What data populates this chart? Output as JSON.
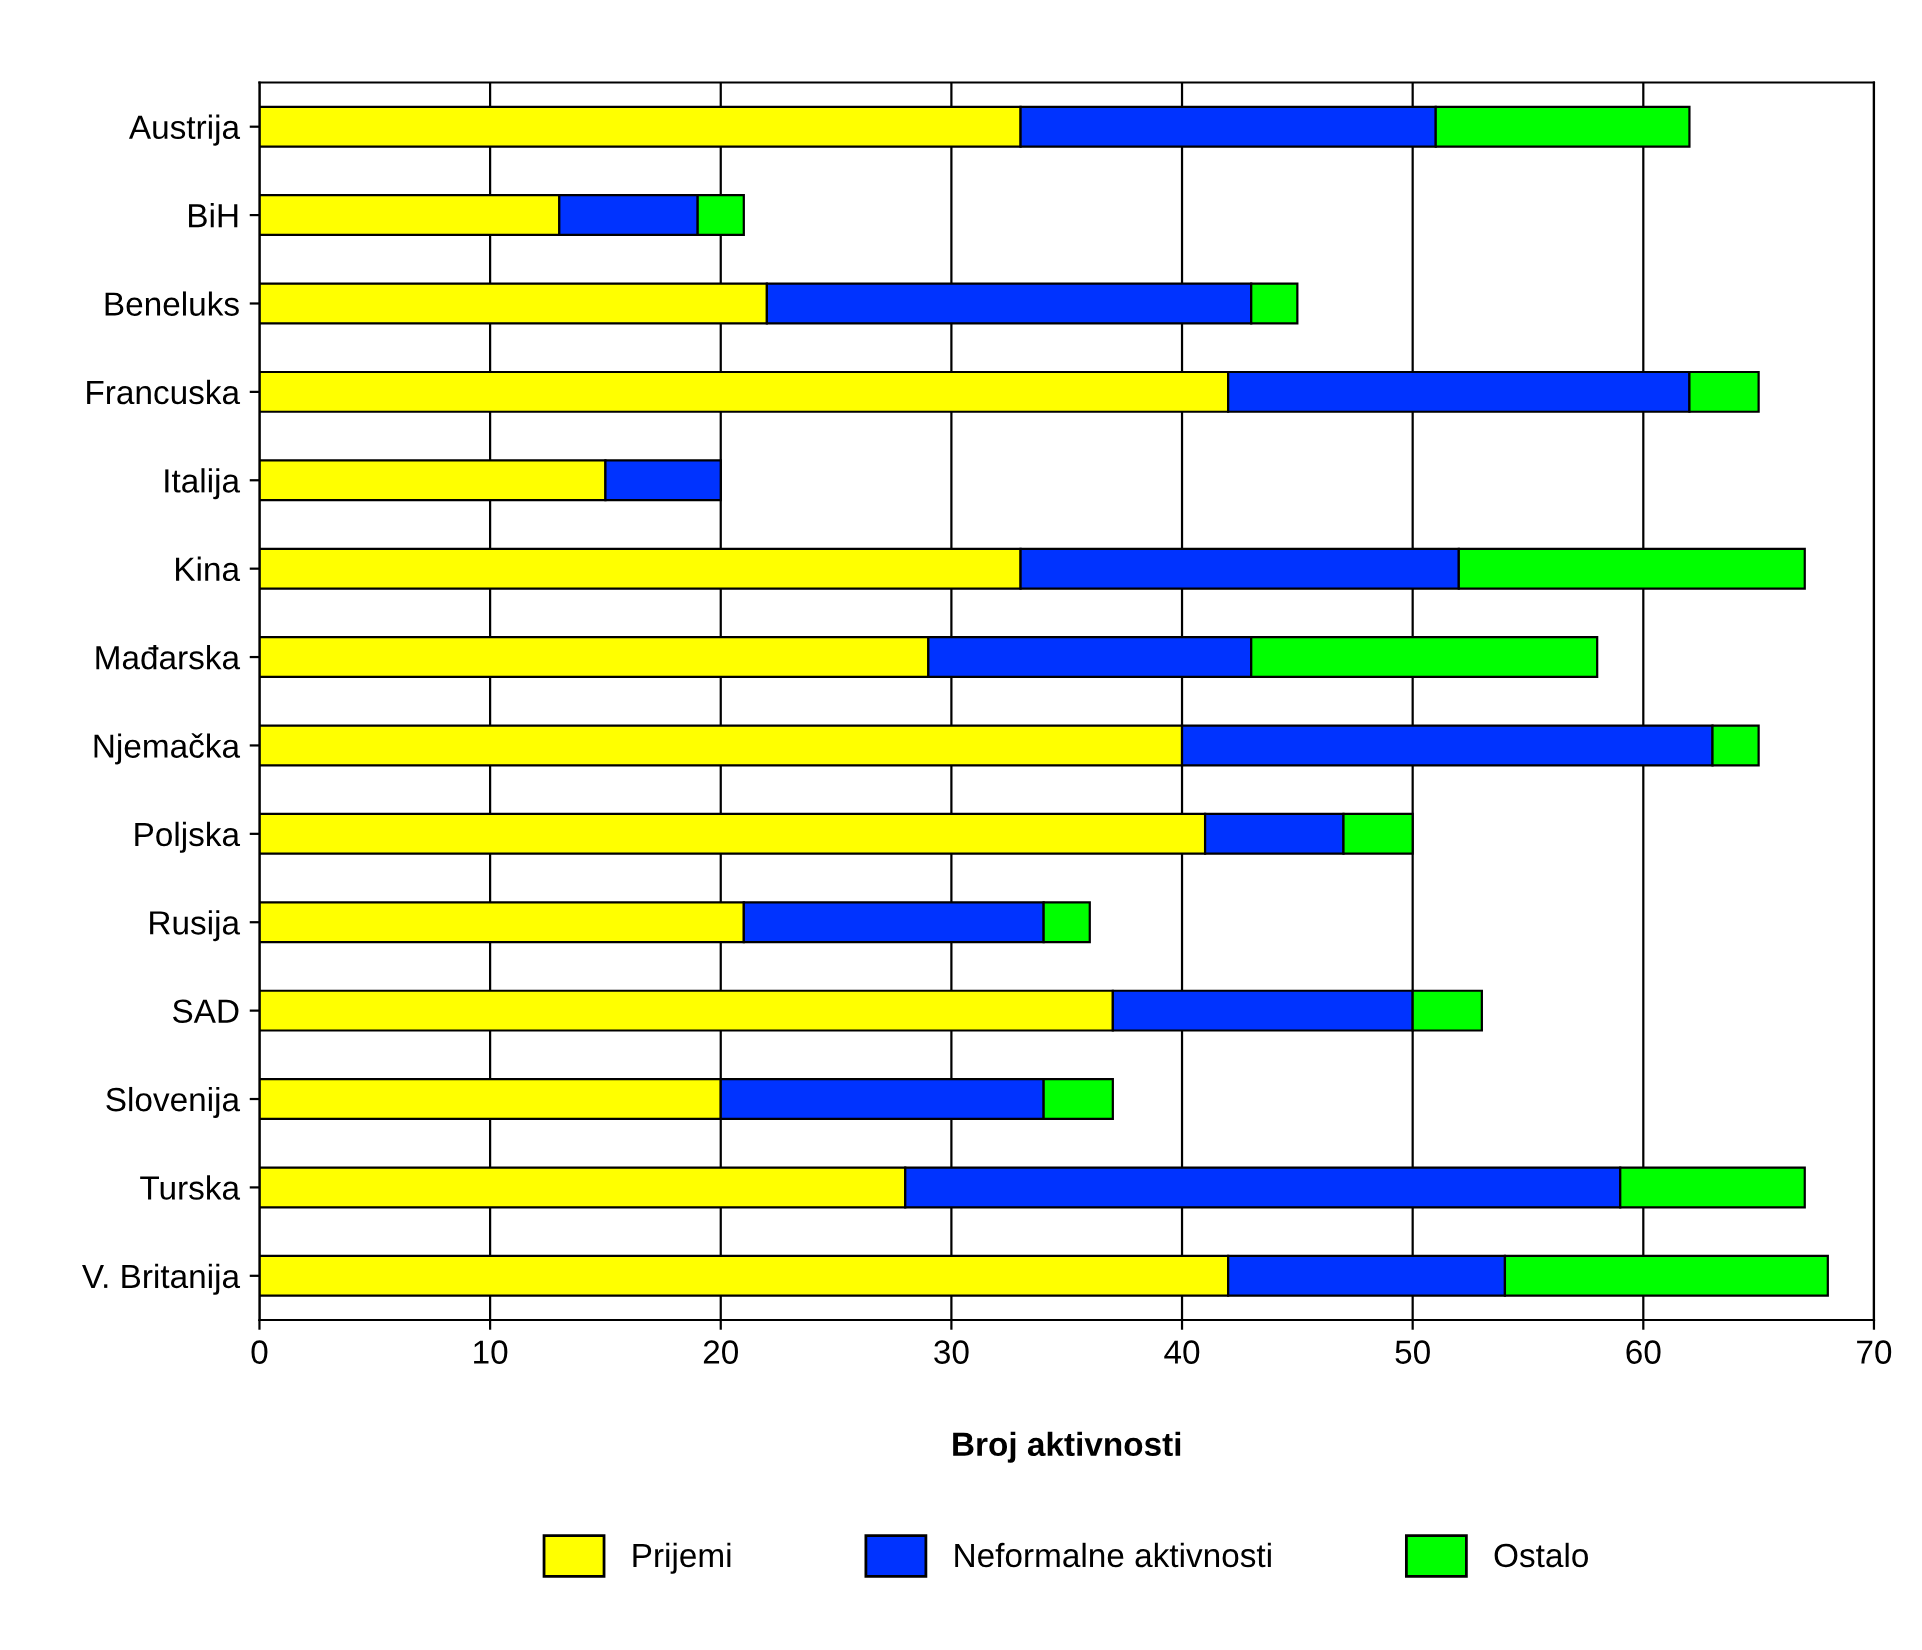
{
  "chart_data": {
    "type": "bar",
    "orientation": "horizontal",
    "stacked": true,
    "xlabel": "Broj aktivnosti",
    "categories": [
      "Austrija",
      "BiH",
      "Beneluks",
      "Francuska",
      "Italija",
      "Kina",
      "Mađarska",
      "Njemačka",
      "Poljska",
      "Rusija",
      "SAD",
      "Slovenija",
      "Turska",
      "V. Britanija"
    ],
    "series": [
      {
        "name": "Prijemi",
        "color": "#ffff00",
        "values": [
          33,
          13,
          22,
          42,
          15,
          33,
          29,
          40,
          41,
          21,
          37,
          20,
          28,
          42
        ]
      },
      {
        "name": "Neformalne aktivnosti",
        "color": "#0033ff",
        "values": [
          18,
          6,
          21,
          20,
          5,
          19,
          14,
          23,
          6,
          13,
          13,
          14,
          31,
          12
        ]
      },
      {
        "name": "Ostalo",
        "color": "#00ff00",
        "values": [
          11,
          2,
          2,
          3,
          null,
          15,
          15,
          2,
          3,
          2,
          3,
          3,
          8,
          14
        ]
      }
    ],
    "xlim": [
      0,
      70
    ],
    "xticks": [
      0,
      10,
      20,
      30,
      40,
      50,
      60,
      70
    ],
    "grid": "x",
    "legend": "bottom"
  }
}
